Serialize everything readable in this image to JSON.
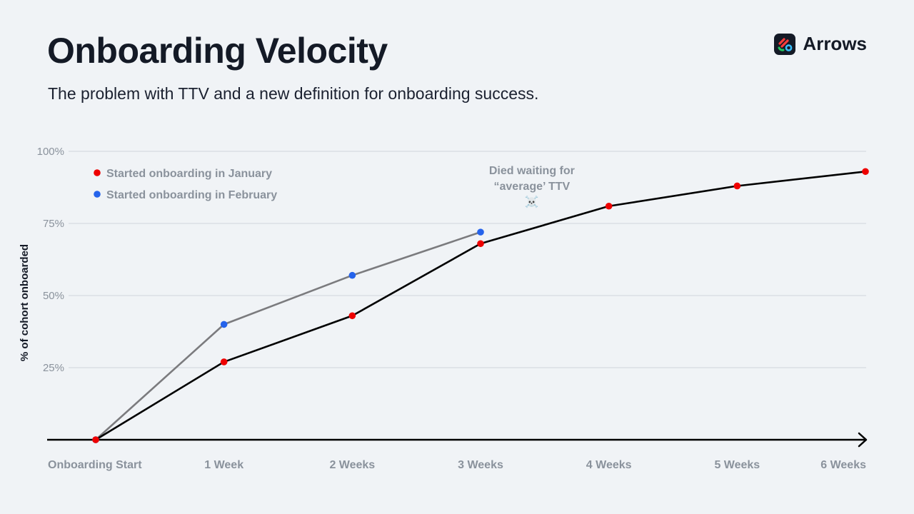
{
  "header": {
    "title": "Onboarding Velocity",
    "subtitle": "The problem with TTV and a new definition for onboarding success.",
    "brand_name": "Arrows",
    "brand_icon": "arrows-logo-icon"
  },
  "chart_data": {
    "type": "line",
    "title": "",
    "xlabel": "",
    "ylabel": "% of cohort onboarded",
    "categories": [
      "Onboarding Start",
      "1 Week",
      "2 Weeks",
      "3 Weeks",
      "4 Weeks",
      "5 Weeks",
      "6 Weeks"
    ],
    "y_tick_labels": [
      "100%",
      "75%",
      "50%",
      "25%"
    ],
    "y_tick_values": [
      100,
      75,
      50,
      25
    ],
    "ylim": [
      0,
      100
    ],
    "grid": true,
    "legend_position": "top-left",
    "series": [
      {
        "name": "Started onboarding in January",
        "line_color": "#000000",
        "marker_color": "#ee0000",
        "x": [
          0,
          1,
          2,
          3,
          4,
          5,
          6
        ],
        "values": [
          0,
          27,
          43,
          68,
          81,
          88,
          93
        ]
      },
      {
        "name": "Started onboarding in February",
        "line_color": "#7b7b7e",
        "marker_color": "#2563eb",
        "x": [
          0,
          1,
          2,
          3
        ],
        "values": [
          0,
          40,
          57,
          72
        ]
      }
    ],
    "annotations": [
      {
        "lines": [
          "Died waiting for",
          "“average’ TTV",
          "☠️"
        ],
        "x": 3.4,
        "y": 92
      }
    ]
  }
}
